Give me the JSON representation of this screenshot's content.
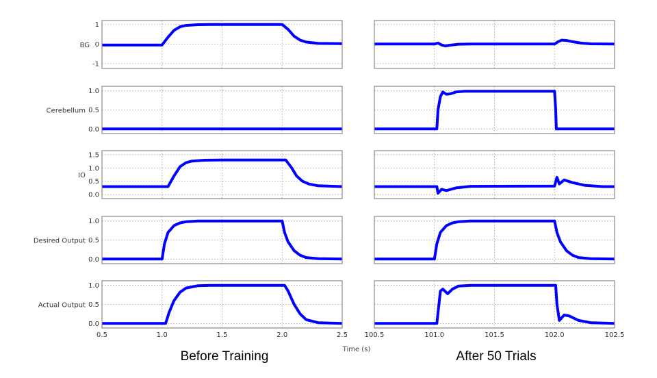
{
  "chart_data": {
    "type": "line",
    "line_color": "#0000ff",
    "xlabel": "Time (s)",
    "grid": true,
    "columns": [
      {
        "title": "Before Training",
        "xlim": [
          0.5,
          2.5
        ],
        "xticks": [
          "0.5",
          "1.0",
          "1.5",
          "2.0",
          "2.5"
        ],
        "xtick_values": [
          0.5,
          1.0,
          1.5,
          2.0,
          2.5
        ]
      },
      {
        "title": "After 50 Trials",
        "xlim": [
          100.5,
          102.5
        ],
        "xticks": [
          "100.5",
          "101.0",
          "101.5",
          "102.0",
          "102.5"
        ],
        "xtick_values": [
          100.5,
          101.0,
          101.5,
          102.0,
          102.5
        ]
      }
    ],
    "rows": [
      {
        "ylabel": "BG",
        "ylim": [
          -1.25,
          1.2
        ],
        "yticks": [
          "1",
          "0",
          "-1"
        ],
        "ytick_values": [
          1,
          0,
          -1
        ]
      },
      {
        "ylabel": "Cerebellum",
        "ylim": [
          -0.12,
          1.12
        ],
        "yticks": [
          "1.0",
          "0.5",
          "0.0"
        ],
        "ytick_values": [
          1.0,
          0.5,
          0.0
        ]
      },
      {
        "ylabel": "IO",
        "ylim": [
          -0.15,
          1.65
        ],
        "yticks": [
          "1.5",
          "1.0",
          "0.5",
          "0.0"
        ],
        "ytick_values": [
          1.5,
          1.0,
          0.5,
          0.0
        ]
      },
      {
        "ylabel": "Desired Output",
        "ylim": [
          -0.12,
          1.12
        ],
        "yticks": [
          "1.0",
          "0.5",
          "0.0"
        ],
        "ytick_values": [
          1.0,
          0.5,
          0.0
        ]
      },
      {
        "ylabel": "Actual Output",
        "ylim": [
          -0.12,
          1.12
        ],
        "yticks": [
          "1.0",
          "0.5",
          "0.0"
        ],
        "ytick_values": [
          1.0,
          0.5,
          0.0
        ]
      }
    ],
    "series": [
      [
        [
          [
            0.5,
            -0.05
          ],
          [
            1.0,
            -0.05
          ],
          [
            1.05,
            0.35
          ],
          [
            1.1,
            0.7
          ],
          [
            1.15,
            0.88
          ],
          [
            1.2,
            0.95
          ],
          [
            1.3,
            0.99
          ],
          [
            1.4,
            1
          ],
          [
            2.0,
            1
          ],
          [
            2.05,
            0.75
          ],
          [
            2.1,
            0.4
          ],
          [
            2.15,
            0.2
          ],
          [
            2.2,
            0.1
          ],
          [
            2.3,
            0.03
          ],
          [
            2.5,
            0.02
          ]
        ],
        [
          [
            100.5,
            0
          ],
          [
            101.0,
            0
          ],
          [
            101.03,
            0.05
          ],
          [
            101.06,
            -0.05
          ],
          [
            101.09,
            -0.1
          ],
          [
            101.13,
            -0.06
          ],
          [
            101.2,
            -0.01
          ],
          [
            101.3,
            0
          ],
          [
            102.0,
            0
          ],
          [
            102.03,
            0.12
          ],
          [
            102.06,
            0.2
          ],
          [
            102.1,
            0.18
          ],
          [
            102.15,
            0.12
          ],
          [
            102.22,
            0.05
          ],
          [
            102.3,
            0.01
          ],
          [
            102.5,
            0
          ]
        ]
      ],
      [
        [
          [
            0.5,
            0
          ],
          [
            2.5,
            0
          ]
        ],
        [
          [
            100.5,
            0
          ],
          [
            101.02,
            0
          ],
          [
            101.03,
            0.5
          ],
          [
            101.05,
            0.85
          ],
          [
            101.07,
            0.97
          ],
          [
            101.1,
            0.91
          ],
          [
            101.13,
            0.92
          ],
          [
            101.18,
            0.97
          ],
          [
            101.25,
            0.99
          ],
          [
            102.0,
            0.99
          ],
          [
            102.01,
            0.5
          ],
          [
            102.015,
            0
          ],
          [
            102.5,
            0
          ]
        ]
      ],
      [
        [
          [
            0.5,
            0.3
          ],
          [
            1.05,
            0.3
          ],
          [
            1.1,
            0.7
          ],
          [
            1.15,
            1.05
          ],
          [
            1.2,
            1.2
          ],
          [
            1.25,
            1.26
          ],
          [
            1.35,
            1.29
          ],
          [
            1.5,
            1.3
          ],
          [
            2.03,
            1.3
          ],
          [
            2.08,
            1.0
          ],
          [
            2.12,
            0.7
          ],
          [
            2.17,
            0.5
          ],
          [
            2.22,
            0.4
          ],
          [
            2.3,
            0.33
          ],
          [
            2.5,
            0.3
          ]
        ],
        [
          [
            100.5,
            0.3
          ],
          [
            101.02,
            0.3
          ],
          [
            101.03,
            0.05
          ],
          [
            101.06,
            0.2
          ],
          [
            101.1,
            0.15
          ],
          [
            101.18,
            0.25
          ],
          [
            101.3,
            0.31
          ],
          [
            102.0,
            0.32
          ],
          [
            102.02,
            0.65
          ],
          [
            102.04,
            0.4
          ],
          [
            102.08,
            0.55
          ],
          [
            102.15,
            0.45
          ],
          [
            102.25,
            0.35
          ],
          [
            102.4,
            0.3
          ],
          [
            102.5,
            0.3
          ]
        ]
      ],
      [
        [
          [
            0.5,
            0
          ],
          [
            1.0,
            0
          ],
          [
            1.02,
            0.4
          ],
          [
            1.05,
            0.7
          ],
          [
            1.1,
            0.88
          ],
          [
            1.15,
            0.95
          ],
          [
            1.2,
            0.98
          ],
          [
            1.3,
            1
          ],
          [
            2.0,
            1
          ],
          [
            2.02,
            0.7
          ],
          [
            2.05,
            0.45
          ],
          [
            2.1,
            0.22
          ],
          [
            2.15,
            0.1
          ],
          [
            2.2,
            0.04
          ],
          [
            2.3,
            0.01
          ],
          [
            2.5,
            0
          ]
        ],
        [
          [
            100.5,
            0
          ],
          [
            101.0,
            0
          ],
          [
            101.02,
            0.4
          ],
          [
            101.05,
            0.7
          ],
          [
            101.1,
            0.88
          ],
          [
            101.15,
            0.95
          ],
          [
            101.2,
            0.98
          ],
          [
            101.3,
            1
          ],
          [
            102.0,
            1
          ],
          [
            102.02,
            0.7
          ],
          [
            102.05,
            0.45
          ],
          [
            102.1,
            0.22
          ],
          [
            102.15,
            0.1
          ],
          [
            102.2,
            0.04
          ],
          [
            102.3,
            0.01
          ],
          [
            102.5,
            0
          ]
        ]
      ],
      [
        [
          [
            0.5,
            0
          ],
          [
            1.03,
            0
          ],
          [
            1.06,
            0.3
          ],
          [
            1.1,
            0.6
          ],
          [
            1.15,
            0.82
          ],
          [
            1.2,
            0.93
          ],
          [
            1.3,
            0.99
          ],
          [
            1.4,
            1
          ],
          [
            2.02,
            1
          ],
          [
            2.05,
            0.85
          ],
          [
            2.1,
            0.5
          ],
          [
            2.15,
            0.25
          ],
          [
            2.2,
            0.1
          ],
          [
            2.3,
            0.02
          ],
          [
            2.5,
            0
          ]
        ],
        [
          [
            100.5,
            0
          ],
          [
            101.02,
            0
          ],
          [
            101.05,
            0.85
          ],
          [
            101.07,
            0.9
          ],
          [
            101.11,
            0.78
          ],
          [
            101.15,
            0.9
          ],
          [
            101.2,
            0.98
          ],
          [
            101.3,
            1
          ],
          [
            102.01,
            1
          ],
          [
            102.02,
            0.5
          ],
          [
            102.04,
            0.08
          ],
          [
            102.08,
            0.22
          ],
          [
            102.12,
            0.2
          ],
          [
            102.2,
            0.08
          ],
          [
            102.3,
            0.02
          ],
          [
            102.5,
            0
          ]
        ]
      ]
    ]
  }
}
